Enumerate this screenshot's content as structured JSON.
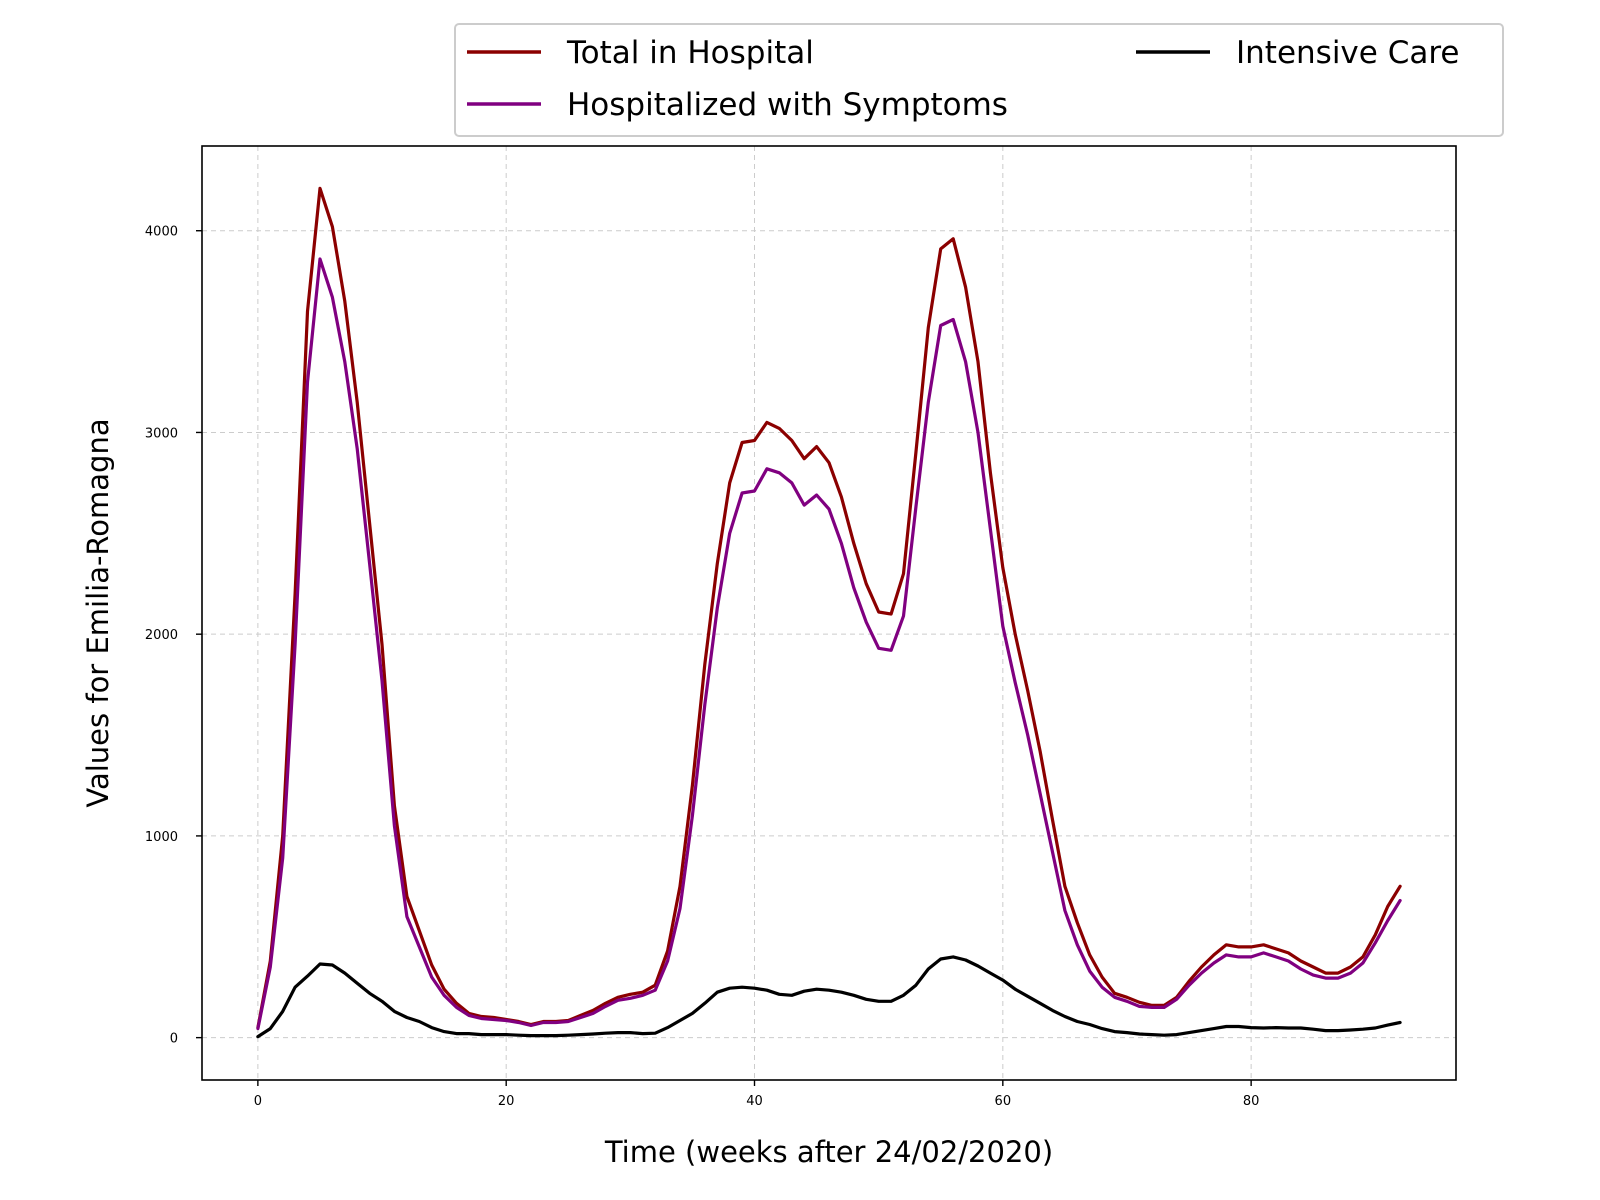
{
  "chart_data": {
    "type": "line",
    "title": "",
    "xlabel": "Time (weeks after 24/02/2020)",
    "ylabel": "Values for Emilia-Romagna",
    "xlim": [
      -4.5,
      96.5
    ],
    "ylim": [
      -210,
      4420
    ],
    "xticks": [
      0,
      20,
      40,
      60,
      80
    ],
    "yticks": [
      0,
      1000,
      2000,
      3000,
      4000
    ],
    "grid": true,
    "legend_position": "above-top-right",
    "x": [
      0,
      1,
      2,
      3,
      4,
      5,
      6,
      7,
      8,
      9,
      10,
      11,
      12,
      13,
      14,
      15,
      16,
      17,
      18,
      19,
      20,
      21,
      22,
      23,
      24,
      25,
      26,
      27,
      28,
      29,
      30,
      31,
      32,
      33,
      34,
      35,
      36,
      37,
      38,
      39,
      40,
      41,
      42,
      43,
      44,
      45,
      46,
      47,
      48,
      49,
      50,
      51,
      52,
      53,
      54,
      55,
      56,
      57,
      58,
      59,
      60,
      61,
      62,
      63,
      64,
      65,
      66,
      67,
      68,
      69,
      70,
      71,
      72,
      73,
      74,
      75,
      76,
      77,
      78,
      79,
      80,
      81,
      82,
      83,
      84,
      85,
      86,
      87,
      88,
      89,
      90,
      91,
      92
    ],
    "series": [
      {
        "name": "Total in Hospital",
        "color": "#8b0000",
        "values": [
          50,
          380,
          1000,
          2200,
          3600,
          4210,
          4020,
          3650,
          3150,
          2550,
          1950,
          1150,
          700,
          530,
          360,
          240,
          170,
          120,
          105,
          100,
          90,
          80,
          65,
          80,
          80,
          85,
          110,
          135,
          170,
          200,
          215,
          225,
          260,
          430,
          750,
          1250,
          1850,
          2350,
          2750,
          2950,
          2960,
          3050,
          3020,
          2960,
          2870,
          2930,
          2850,
          2680,
          2450,
          2250,
          2110,
          2100,
          2300,
          2900,
          3520,
          3910,
          3960,
          3720,
          3350,
          2800,
          2330,
          2000,
          1720,
          1420,
          1080,
          750,
          570,
          410,
          300,
          220,
          200,
          175,
          160,
          160,
          200,
          280,
          350,
          410,
          460,
          450,
          450,
          460,
          440,
          420,
          380,
          350,
          320,
          320,
          350,
          400,
          510,
          650,
          750
        ]
      },
      {
        "name": "Hospitalized with Symptoms",
        "color": "#800080",
        "values": [
          45,
          350,
          890,
          1950,
          3250,
          3860,
          3670,
          3350,
          2920,
          2350,
          1770,
          1050,
          600,
          450,
          300,
          210,
          150,
          110,
          95,
          90,
          85,
          75,
          60,
          75,
          75,
          80,
          100,
          120,
          155,
          185,
          195,
          210,
          235,
          380,
          640,
          1100,
          1650,
          2130,
          2500,
          2700,
          2710,
          2820,
          2800,
          2750,
          2640,
          2690,
          2620,
          2450,
          2230,
          2060,
          1930,
          1920,
          2090,
          2630,
          3150,
          3530,
          3560,
          3350,
          3000,
          2520,
          2040,
          1760,
          1500,
          1210,
          920,
          630,
          460,
          330,
          250,
          200,
          180,
          155,
          150,
          150,
          190,
          260,
          320,
          370,
          410,
          400,
          400,
          420,
          400,
          380,
          340,
          310,
          295,
          295,
          320,
          370,
          470,
          580,
          680
        ]
      },
      {
        "name": "Intensive Care",
        "color": "#000000",
        "values": [
          5,
          45,
          130,
          250,
          305,
          365,
          360,
          320,
          270,
          220,
          180,
          130,
          100,
          80,
          50,
          30,
          20,
          20,
          15,
          15,
          15,
          12,
          10,
          10,
          10,
          12,
          15,
          18,
          22,
          25,
          25,
          20,
          22,
          50,
          85,
          120,
          170,
          225,
          245,
          250,
          245,
          235,
          215,
          210,
          230,
          240,
          235,
          225,
          210,
          190,
          180,
          180,
          210,
          260,
          340,
          390,
          400,
          385,
          355,
          320,
          285,
          240,
          205,
          170,
          135,
          105,
          80,
          65,
          45,
          30,
          25,
          18,
          15,
          12,
          15,
          25,
          35,
          45,
          55,
          55,
          50,
          48,
          50,
          48,
          48,
          42,
          35,
          35,
          38,
          42,
          48,
          62,
          75
        ]
      }
    ]
  }
}
